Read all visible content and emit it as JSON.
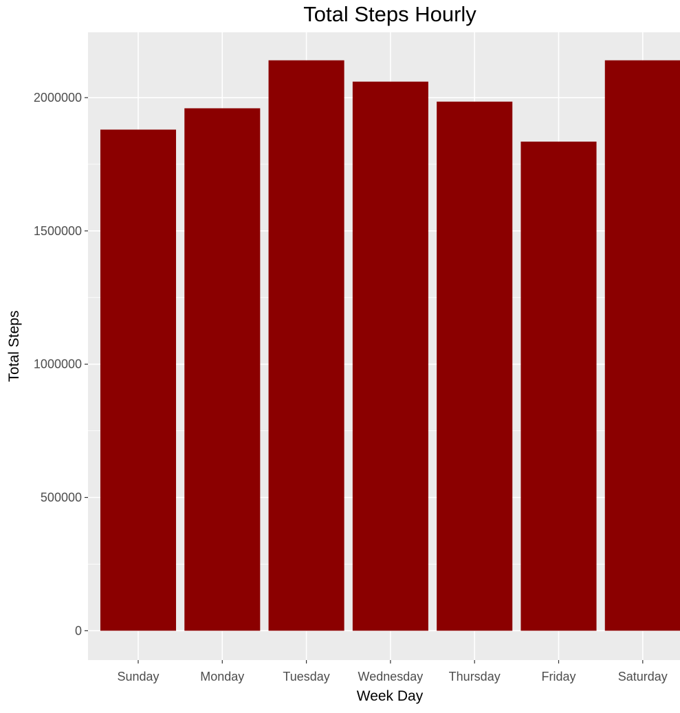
{
  "chart_data": {
    "type": "bar",
    "title": "Total Steps Hourly",
    "xlabel": "Week Day",
    "ylabel": "Total Steps",
    "categories": [
      "Sunday",
      "Monday",
      "Tuesday",
      "Wednesday",
      "Thursday",
      "Friday",
      "Saturday"
    ],
    "values": [
      1880000,
      1960000,
      2140000,
      2060000,
      1985000,
      1835000,
      2140000
    ],
    "ylim": [
      -110000,
      2245000
    ],
    "yticks": [
      0,
      500000,
      1000000,
      1500000,
      2000000
    ],
    "ytick_labels": [
      "0",
      "500000",
      "1000000",
      "1500000",
      "2000000"
    ],
    "grid": true,
    "legend": "none",
    "colors": {
      "bar": "#8b0000",
      "panel": "#ebebeb",
      "grid": "#ffffff",
      "tick_text": "#4d4d4d",
      "tick_mark": "#333333"
    }
  }
}
